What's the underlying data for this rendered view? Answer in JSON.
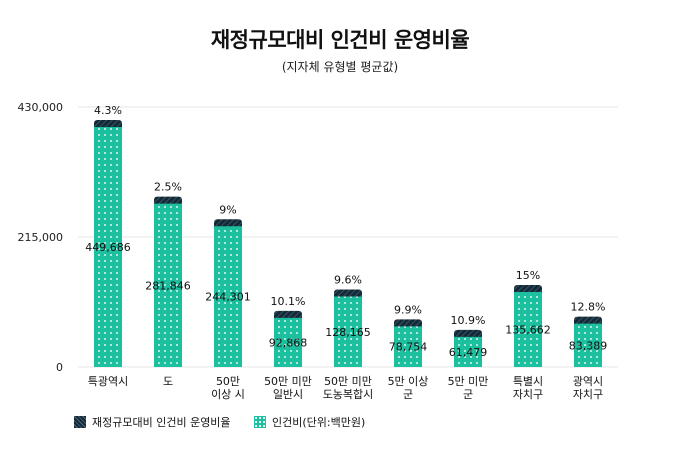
{
  "title": "재정규모대비 인건비 운영비율",
  "subtitle": "(지자체 유형별 평균값)",
  "colors": {
    "bar": "#1cbf9e",
    "cap": "#142a38",
    "dot": "#ffffff",
    "grid": "#e6e6e6"
  },
  "chart_data": {
    "type": "bar",
    "title": "재정규모대비 인건비 운영비율",
    "subtitle": "(지자체 유형별 평균값)",
    "xlabel": "",
    "ylabel": "",
    "ylim": [
      0,
      430000
    ],
    "yticks": [
      0,
      215000,
      430000
    ],
    "ytick_labels": [
      "0",
      "215,000",
      "430,000"
    ],
    "grid": true,
    "legend_position": "bottom-left",
    "categories": [
      [
        "특광역시"
      ],
      [
        "도"
      ],
      [
        "50만",
        "이상 시"
      ],
      [
        "50만 미만",
        "일반시"
      ],
      [
        "50만 미만",
        "도농복합시"
      ],
      [
        "5만 이상",
        "군"
      ],
      [
        "5만 미만",
        "군"
      ],
      [
        "특별시",
        "자치구"
      ],
      [
        "광역시",
        "자치구"
      ]
    ],
    "series": [
      {
        "name": "인건비(단위:백만원)",
        "values": [
          449686,
          281846,
          244301,
          92868,
          128165,
          78754,
          61479,
          135662,
          83389
        ],
        "labels": [
          "449,686",
          "281,846",
          "244,301",
          "92,868",
          "128,165",
          "78,754",
          "61,479",
          "135,662",
          "83,389"
        ]
      },
      {
        "name": "재정규모대비 인건비 운영비율",
        "values": [
          4.3,
          2.5,
          9,
          10.1,
          9.6,
          9.9,
          10.9,
          15,
          12.8
        ],
        "labels": [
          "4.3%",
          "2.5%",
          "9%",
          "10.1%",
          "9.6%",
          "9.9%",
          "10.9%",
          "15%",
          "12.8%"
        ]
      }
    ]
  }
}
